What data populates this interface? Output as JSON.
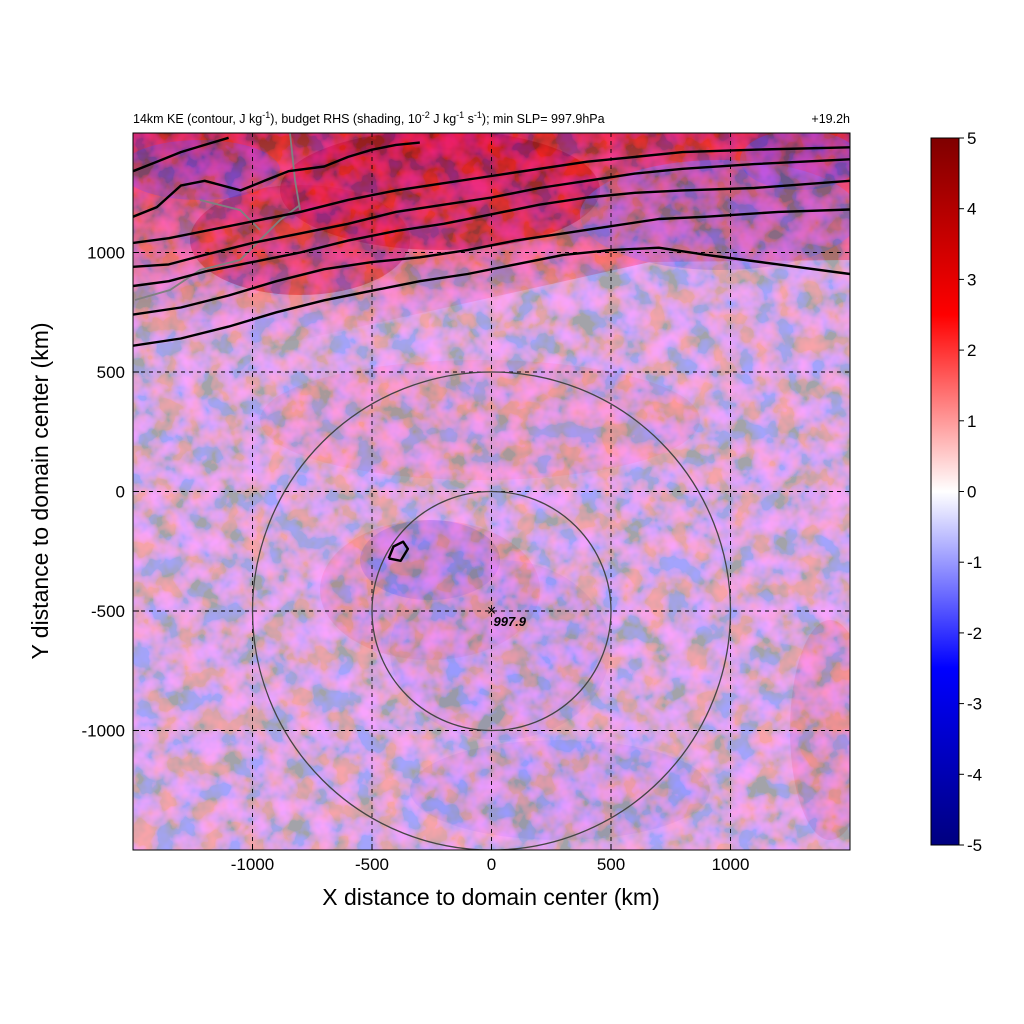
{
  "chart_data": {
    "type": "heatmap",
    "title": {
      "left_parts": [
        "14km KE (contour, J kg",
        "-1",
        "), budget RHS (shading, 10",
        "-2",
        " J kg",
        "-1",
        " s",
        "-1",
        "); min SLP= 997.9hPa"
      ],
      "right": "+19.2h"
    },
    "xlabel": "X distance to domain center (km)",
    "ylabel": "Y distance to domain center (km)",
    "xlim": [
      -1500,
      1500
    ],
    "ylim": [
      -1500,
      1500
    ],
    "xticks": [
      -1000,
      -500,
      0,
      500,
      1000
    ],
    "yticks": [
      -1000,
      -500,
      0,
      500,
      1000
    ],
    "xtick_labels": [
      "-1000",
      "-500",
      "0",
      "500",
      "1000"
    ],
    "ytick_labels": [
      "-1000",
      "-500",
      "0",
      "500",
      "1000"
    ],
    "grid": "dashed",
    "colorbar": {
      "range": [
        -5,
        5
      ],
      "ticks": [
        5,
        4,
        3,
        2,
        1,
        0,
        -1,
        -2,
        -3,
        -4,
        -5
      ],
      "tick_labels": [
        "5",
        "4",
        "3",
        "2",
        "1",
        "0",
        "-1",
        "-2",
        "-3",
        "-4",
        "-5"
      ],
      "colormap": [
        "#00007f",
        "#0000ff",
        "#ffffff",
        "#ff0000",
        "#7f0000"
      ]
    },
    "storm_center": {
      "x": 0,
      "y": -500,
      "label": "997.9"
    },
    "range_rings_km": [
      500,
      1000
    ],
    "ke_contours": [
      {
        "points": [
          [
            -1500,
            610
          ],
          [
            -1300,
            640
          ],
          [
            -1100,
            690
          ],
          [
            -900,
            750
          ],
          [
            -700,
            800
          ],
          [
            -500,
            840
          ],
          [
            -300,
            880
          ],
          [
            -100,
            910
          ],
          [
            100,
            950
          ],
          [
            300,
            990
          ],
          [
            500,
            1010
          ],
          [
            700,
            1020
          ],
          [
            900,
            990
          ],
          [
            1200,
            950
          ],
          [
            1500,
            910
          ]
        ]
      },
      {
        "points": [
          [
            -1500,
            740
          ],
          [
            -1300,
            770
          ],
          [
            -1100,
            820
          ],
          [
            -900,
            880
          ],
          [
            -700,
            930
          ],
          [
            -500,
            960
          ],
          [
            -300,
            980
          ],
          [
            -100,
            1010
          ],
          [
            100,
            1050
          ],
          [
            300,
            1080
          ],
          [
            500,
            1110
          ],
          [
            700,
            1140
          ],
          [
            900,
            1150
          ],
          [
            1200,
            1170
          ],
          [
            1500,
            1180
          ]
        ]
      },
      {
        "points": [
          [
            -1500,
            860
          ],
          [
            -1350,
            880
          ],
          [
            -1200,
            920
          ],
          [
            -1000,
            960
          ],
          [
            -800,
            1000
          ],
          [
            -600,
            1050
          ],
          [
            -400,
            1090
          ],
          [
            -200,
            1120
          ],
          [
            0,
            1160
          ],
          [
            200,
            1200
          ],
          [
            400,
            1230
          ],
          [
            600,
            1250
          ],
          [
            800,
            1260
          ],
          [
            1100,
            1270
          ],
          [
            1500,
            1300
          ]
        ]
      },
      {
        "points": [
          [
            -1500,
            940
          ],
          [
            -1350,
            950
          ],
          [
            -1200,
            990
          ],
          [
            -1000,
            1040
          ],
          [
            -800,
            1080
          ],
          [
            -600,
            1120
          ],
          [
            -400,
            1170
          ],
          [
            -200,
            1200
          ],
          [
            0,
            1230
          ],
          [
            200,
            1270
          ],
          [
            400,
            1300
          ],
          [
            600,
            1330
          ],
          [
            800,
            1350
          ],
          [
            1100,
            1370
          ],
          [
            1500,
            1390
          ]
        ]
      },
      {
        "points": [
          [
            -1500,
            1040
          ],
          [
            -1350,
            1060
          ],
          [
            -1200,
            1090
          ],
          [
            -1000,
            1130
          ],
          [
            -800,
            1170
          ],
          [
            -600,
            1220
          ],
          [
            -400,
            1260
          ],
          [
            -200,
            1290
          ],
          [
            0,
            1320
          ],
          [
            200,
            1350
          ],
          [
            400,
            1380
          ],
          [
            600,
            1400
          ],
          [
            800,
            1420
          ],
          [
            1100,
            1430
          ],
          [
            1500,
            1440
          ]
        ]
      },
      {
        "points": [
          [
            -1500,
            1150
          ],
          [
            -1400,
            1190
          ],
          [
            -1300,
            1280
          ],
          [
            -1200,
            1300
          ],
          [
            -1050,
            1260
          ],
          [
            -950,
            1300
          ],
          [
            -850,
            1340
          ],
          [
            -700,
            1360
          ],
          [
            -600,
            1400
          ],
          [
            -500,
            1430
          ],
          [
            -400,
            1450
          ],
          [
            -300,
            1460
          ]
        ]
      },
      {
        "points": [
          [
            -1500,
            1340
          ],
          [
            -1400,
            1380
          ],
          [
            -1300,
            1420
          ],
          [
            -1200,
            1450
          ],
          [
            -1100,
            1480
          ]
        ]
      },
      {
        "points": [
          [
            -430,
            -280
          ],
          [
            -410,
            -230
          ],
          [
            -370,
            -210
          ],
          [
            -350,
            -240
          ],
          [
            -380,
            -290
          ],
          [
            -430,
            -280
          ]
        ]
      }
    ]
  }
}
